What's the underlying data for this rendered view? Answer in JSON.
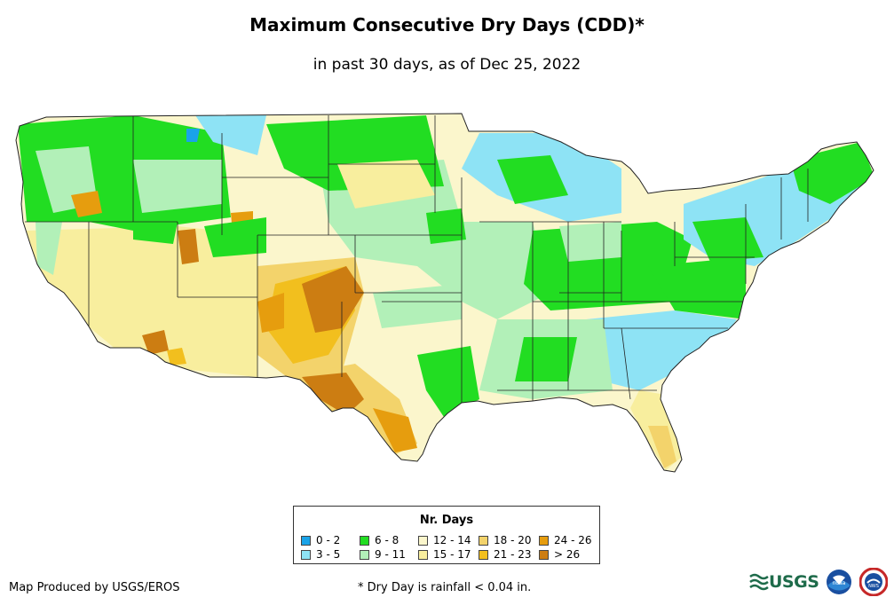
{
  "title": "Maximum Consecutive Dry Days (CDD)*",
  "subtitle": "in past 30 days, as of Dec 25, 2022",
  "legend": {
    "title": "Nr. Days",
    "items": [
      {
        "label": "0 - 2",
        "color": "#1aa3e8"
      },
      {
        "label": "3 - 5",
        "color": "#8ee3f5"
      },
      {
        "label": "6 - 8",
        "color": "#22dd22"
      },
      {
        "label": "9 - 11",
        "color": "#b2f0b8"
      },
      {
        "label": "12 - 14",
        "color": "#fbf6cc"
      },
      {
        "label": "15 - 17",
        "color": "#f8ee9e"
      },
      {
        "label": "18 - 20",
        "color": "#f3d36b"
      },
      {
        "label": "21 - 23",
        "color": "#f2bf1e"
      },
      {
        "label": "24 - 26",
        "color": "#e69d0e"
      },
      {
        "label": "> 26",
        "color": "#cc7d12"
      }
    ]
  },
  "credit": "Map Produced by USGS/EROS",
  "footnote": "* Dry Day is rainfall < 0.04 in.",
  "logos": {
    "usgs": "USGS",
    "noaa": "noaa",
    "nws": "NWS"
  }
}
